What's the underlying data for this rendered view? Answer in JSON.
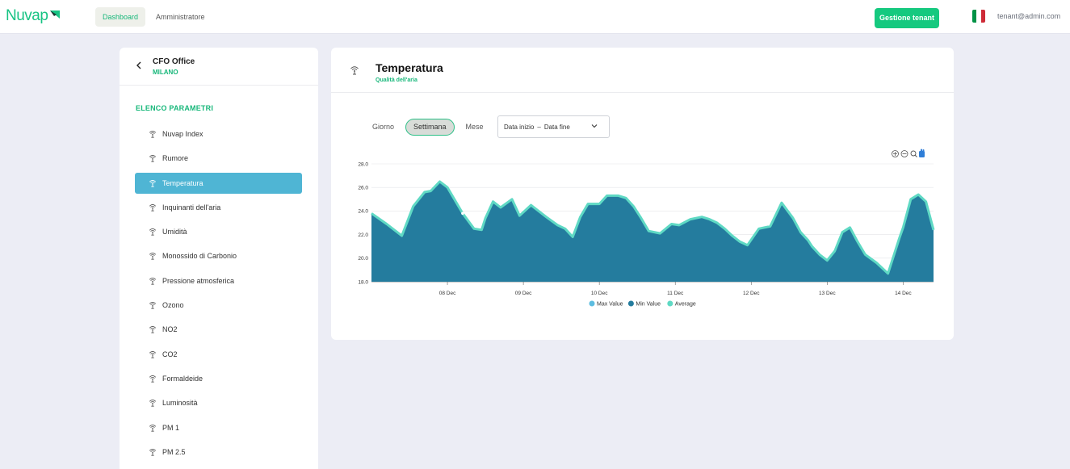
{
  "app": {
    "logo_text": "Nuvap",
    "nav": [
      {
        "label": "Dashboard",
        "active": true
      },
      {
        "label": "Amministratore",
        "active": false
      }
    ],
    "tenant_button": "Gestione tenant",
    "user_email": "tenant@admin.com",
    "flag_colors": [
      "#009246",
      "#ffffff",
      "#ce2b37"
    ],
    "accent_color": "#17c383"
  },
  "sidebar": {
    "office_name": "CFO Office",
    "office_city": "MILANO",
    "section_title": "ELENCO PARAMETRI",
    "items": [
      {
        "label": "Nuvap Index",
        "active": false
      },
      {
        "label": "Rumore",
        "active": false
      },
      {
        "label": "Temperatura",
        "active": true
      },
      {
        "label": "Inquinanti dell'aria",
        "active": false
      },
      {
        "label": "Umidità",
        "active": false
      },
      {
        "label": "Monossido di Carbonio",
        "active": false
      },
      {
        "label": "Pressione atmosferica",
        "active": false
      },
      {
        "label": "Ozono",
        "active": false
      },
      {
        "label": "NO2",
        "active": false
      },
      {
        "label": "CO2",
        "active": false
      },
      {
        "label": "Formaldeide",
        "active": false
      },
      {
        "label": "Luminosità",
        "active": false
      },
      {
        "label": "PM 1",
        "active": false
      },
      {
        "label": "PM 2.5",
        "active": false
      }
    ]
  },
  "card": {
    "title": "Temperatura",
    "subtitle": "Qualità dell'aria",
    "period_tabs": [
      {
        "label": "Giorno",
        "active": false
      },
      {
        "label": "Settimana",
        "active": true
      },
      {
        "label": "Mese",
        "active": false
      }
    ],
    "date_start_placeholder": "Data inizio",
    "date_separator": "–",
    "date_end_placeholder": "Data fine",
    "toolbar_icons": [
      "zoom-in-icon",
      "zoom-out-icon",
      "magnifier-icon",
      "pan-hand-icon"
    ]
  },
  "chart_data": {
    "type": "area",
    "y_ticks": [
      "28.0",
      "26.0",
      "24.0",
      "22.0",
      "20.0",
      "18.0"
    ],
    "ylim": [
      18,
      28
    ],
    "x_tick_labels": [
      "08 Dec",
      "09 Dec",
      "10 Dec",
      "11 Dec",
      "12 Dec",
      "13 Dec",
      "14 Dec"
    ],
    "x_tick_positions_days": [
      1,
      2,
      3,
      4,
      5,
      6,
      7
    ],
    "xlim_days": [
      0.0,
      7.4
    ],
    "legend": [
      "Max Value",
      "Min Value",
      "Average"
    ],
    "colors": {
      "max": "#5dbde0",
      "min": "#247c9e",
      "average": "#5fd9c4"
    },
    "series": [
      {
        "name": "Average",
        "x": [
          0.0,
          0.2,
          0.4,
          0.55,
          0.7,
          0.78,
          0.9,
          1.0,
          1.2,
          1.35,
          1.45,
          1.5,
          1.6,
          1.7,
          1.85,
          1.95,
          2.1,
          2.3,
          2.45,
          2.55,
          2.65,
          2.75,
          2.85,
          3.0,
          3.1,
          3.25,
          3.35,
          3.45,
          3.55,
          3.65,
          3.8,
          3.95,
          4.05,
          4.2,
          4.35,
          4.45,
          4.55,
          4.65,
          4.75,
          4.85,
          4.95,
          5.1,
          5.25,
          5.4,
          5.55,
          5.65,
          5.75,
          5.8,
          5.9,
          6.0,
          6.1,
          6.2,
          6.3,
          6.4,
          6.5,
          6.65,
          6.8,
          6.95,
          7.0,
          7.1,
          7.2,
          7.3,
          7.4
        ],
        "y": [
          23.8,
          22.9,
          21.9,
          24.4,
          25.6,
          25.7,
          26.5,
          26.0,
          23.8,
          22.5,
          22.4,
          23.4,
          24.8,
          24.3,
          25.0,
          23.6,
          24.5,
          23.5,
          22.8,
          22.5,
          21.8,
          23.5,
          24.6,
          24.6,
          25.3,
          25.3,
          25.1,
          24.4,
          23.4,
          22.3,
          22.1,
          22.9,
          22.8,
          23.3,
          23.5,
          23.3,
          23.0,
          22.5,
          21.9,
          21.4,
          21.1,
          22.5,
          22.7,
          24.7,
          23.4,
          22.2,
          21.5,
          21.0,
          20.3,
          19.8,
          20.6,
          22.2,
          22.6,
          21.4,
          20.3,
          19.6,
          18.7,
          21.7,
          22.6,
          25.0,
          25.4,
          24.8,
          22.4
        ]
      }
    ]
  }
}
